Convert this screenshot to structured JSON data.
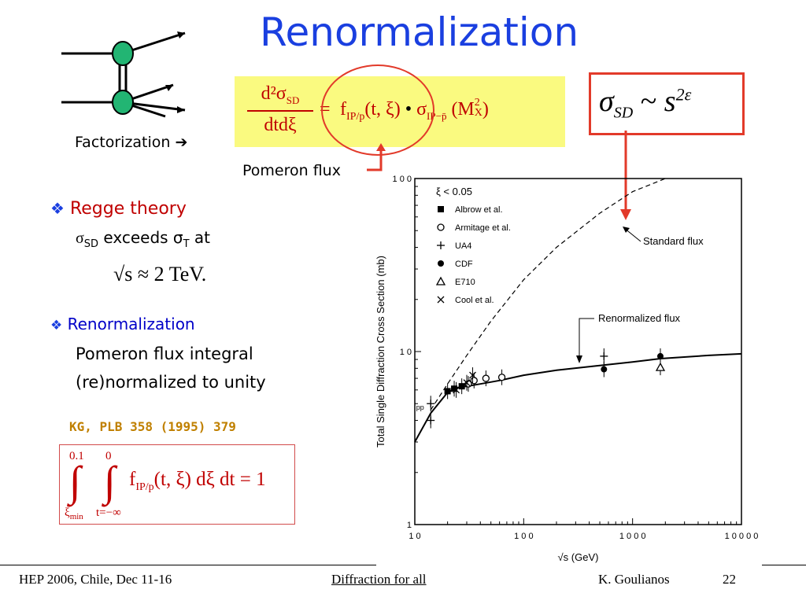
{
  "slide": {
    "title": "Renormalization",
    "factorization_label": "Factorization",
    "pomeron_flux_label": "Pomeron flux",
    "equation": {
      "lhs_num": "d²σ",
      "lhs_num_sub": "SD",
      "lhs_den": "dtdξ",
      "eq": "=",
      "f": "f",
      "f_sub": "IP/p",
      "args": "(t, ξ)",
      "dot": "•",
      "sigma": "σ",
      "sigma_sub": "IP−p̄",
      "mx": "(M",
      "mx_sup": "2",
      "mx_sub": "X",
      "close": ")"
    },
    "sigma_sd": {
      "sigma": "σ",
      "sub": "SD",
      "tilde": "~",
      "s": "s",
      "exp": "2ε"
    },
    "bullets": [
      {
        "marker": "❖",
        "heading": "Regge theory",
        "line1_pre": "σ",
        "line1_sub": "SD",
        "line1_mid": " exceeds σ",
        "line1_sub2": "T",
        "line1_post": " at",
        "formula": "√s ≈ 2 TeV."
      },
      {
        "marker": "❖",
        "heading": "Renormalization",
        "line1": "Pomeron flux integral",
        "line2": "(re)normalized to unity"
      }
    ],
    "reference": "KG, PLB 358 (1995) 379",
    "integral": {
      "upper1": "0.1",
      "upper2": "0",
      "lower1": "ξ",
      "lower1_sub": "min",
      "lower2": "t=−∞",
      "body_f": "f",
      "body_sub": "IP/p",
      "body_rest": "(t, ξ) dξ dt = 1",
      "sign": "∫"
    }
  },
  "footer": {
    "left": "HEP 2006, Chile, Dec 11-16",
    "center": "Diffraction for all",
    "author": "K. Goulianos",
    "page": "22"
  },
  "chart_data": {
    "type": "scatter",
    "xlabel": "√s  (GeV)",
    "ylabel": "Total Single Diffraction Cross Section (mb)",
    "xscale": "log",
    "yscale": "log",
    "xlim": [
      10,
      10000
    ],
    "ylim": [
      1,
      100
    ],
    "xticks": [
      "1 0",
      "1 0 0",
      "1 0 0 0",
      "1 0 0 0 0"
    ],
    "yticks": [
      "1 0 0",
      "1 0",
      "1"
    ],
    "legend_header": "ξ   <  0.05",
    "legend": [
      {
        "marker": "square",
        "label": "Albrow  et  al."
      },
      {
        "marker": "circle-open",
        "label": "Armitage  et  al."
      },
      {
        "marker": "plus",
        "label": "UA4"
      },
      {
        "marker": "circle",
        "label": "CDF"
      },
      {
        "marker": "triangle-open",
        "label": "E710"
      },
      {
        "marker": "cross",
        "label": "Cool et al."
      }
    ],
    "annotations": [
      "Standard flux",
      "Renormalized flux",
      "pp"
    ],
    "series": [
      {
        "name": "Standard flux",
        "style": "dashed",
        "x": [
          14,
          20,
          30,
          50,
          100,
          200,
          500,
          1000,
          2000
        ],
        "y": [
          4.6,
          6.5,
          9.5,
          15,
          26,
          40,
          63,
          84,
          100
        ]
      },
      {
        "name": "Renormalized flux",
        "style": "solid",
        "x": [
          10,
          14,
          20,
          25,
          30,
          40,
          60,
          100,
          200,
          500,
          1000,
          1800,
          5000,
          10000
        ],
        "y": [
          3.0,
          4.4,
          5.8,
          6.2,
          6.3,
          6.5,
          6.8,
          7.3,
          7.8,
          8.3,
          8.7,
          9.1,
          9.5,
          9.7
        ]
      }
    ],
    "points": [
      {
        "marker": "plus",
        "x": 14,
        "y": 4.0
      },
      {
        "marker": "plus",
        "x": 14,
        "y": 5.0
      },
      {
        "marker": "square",
        "x": 20,
        "y": 5.9
      },
      {
        "marker": "square",
        "x": 23,
        "y": 6.1
      },
      {
        "marker": "square",
        "x": 27,
        "y": 6.3
      },
      {
        "marker": "circle-open",
        "x": 31,
        "y": 6.5
      },
      {
        "marker": "circle-open",
        "x": 35,
        "y": 6.8
      },
      {
        "marker": "circle-open",
        "x": 45,
        "y": 7.0
      },
      {
        "marker": "circle-open",
        "x": 63,
        "y": 7.1
      },
      {
        "marker": "cross",
        "x": 24,
        "y": 6.0
      },
      {
        "marker": "cross",
        "x": 30,
        "y": 6.6
      },
      {
        "marker": "cross",
        "x": 34,
        "y": 7.3
      },
      {
        "marker": "plus",
        "x": 546,
        "y": 9.4
      },
      {
        "marker": "circle",
        "x": 546,
        "y": 7.9
      },
      {
        "marker": "circle",
        "x": 1800,
        "y": 9.4
      },
      {
        "marker": "triangle-open",
        "x": 1800,
        "y": 8.1
      }
    ]
  }
}
